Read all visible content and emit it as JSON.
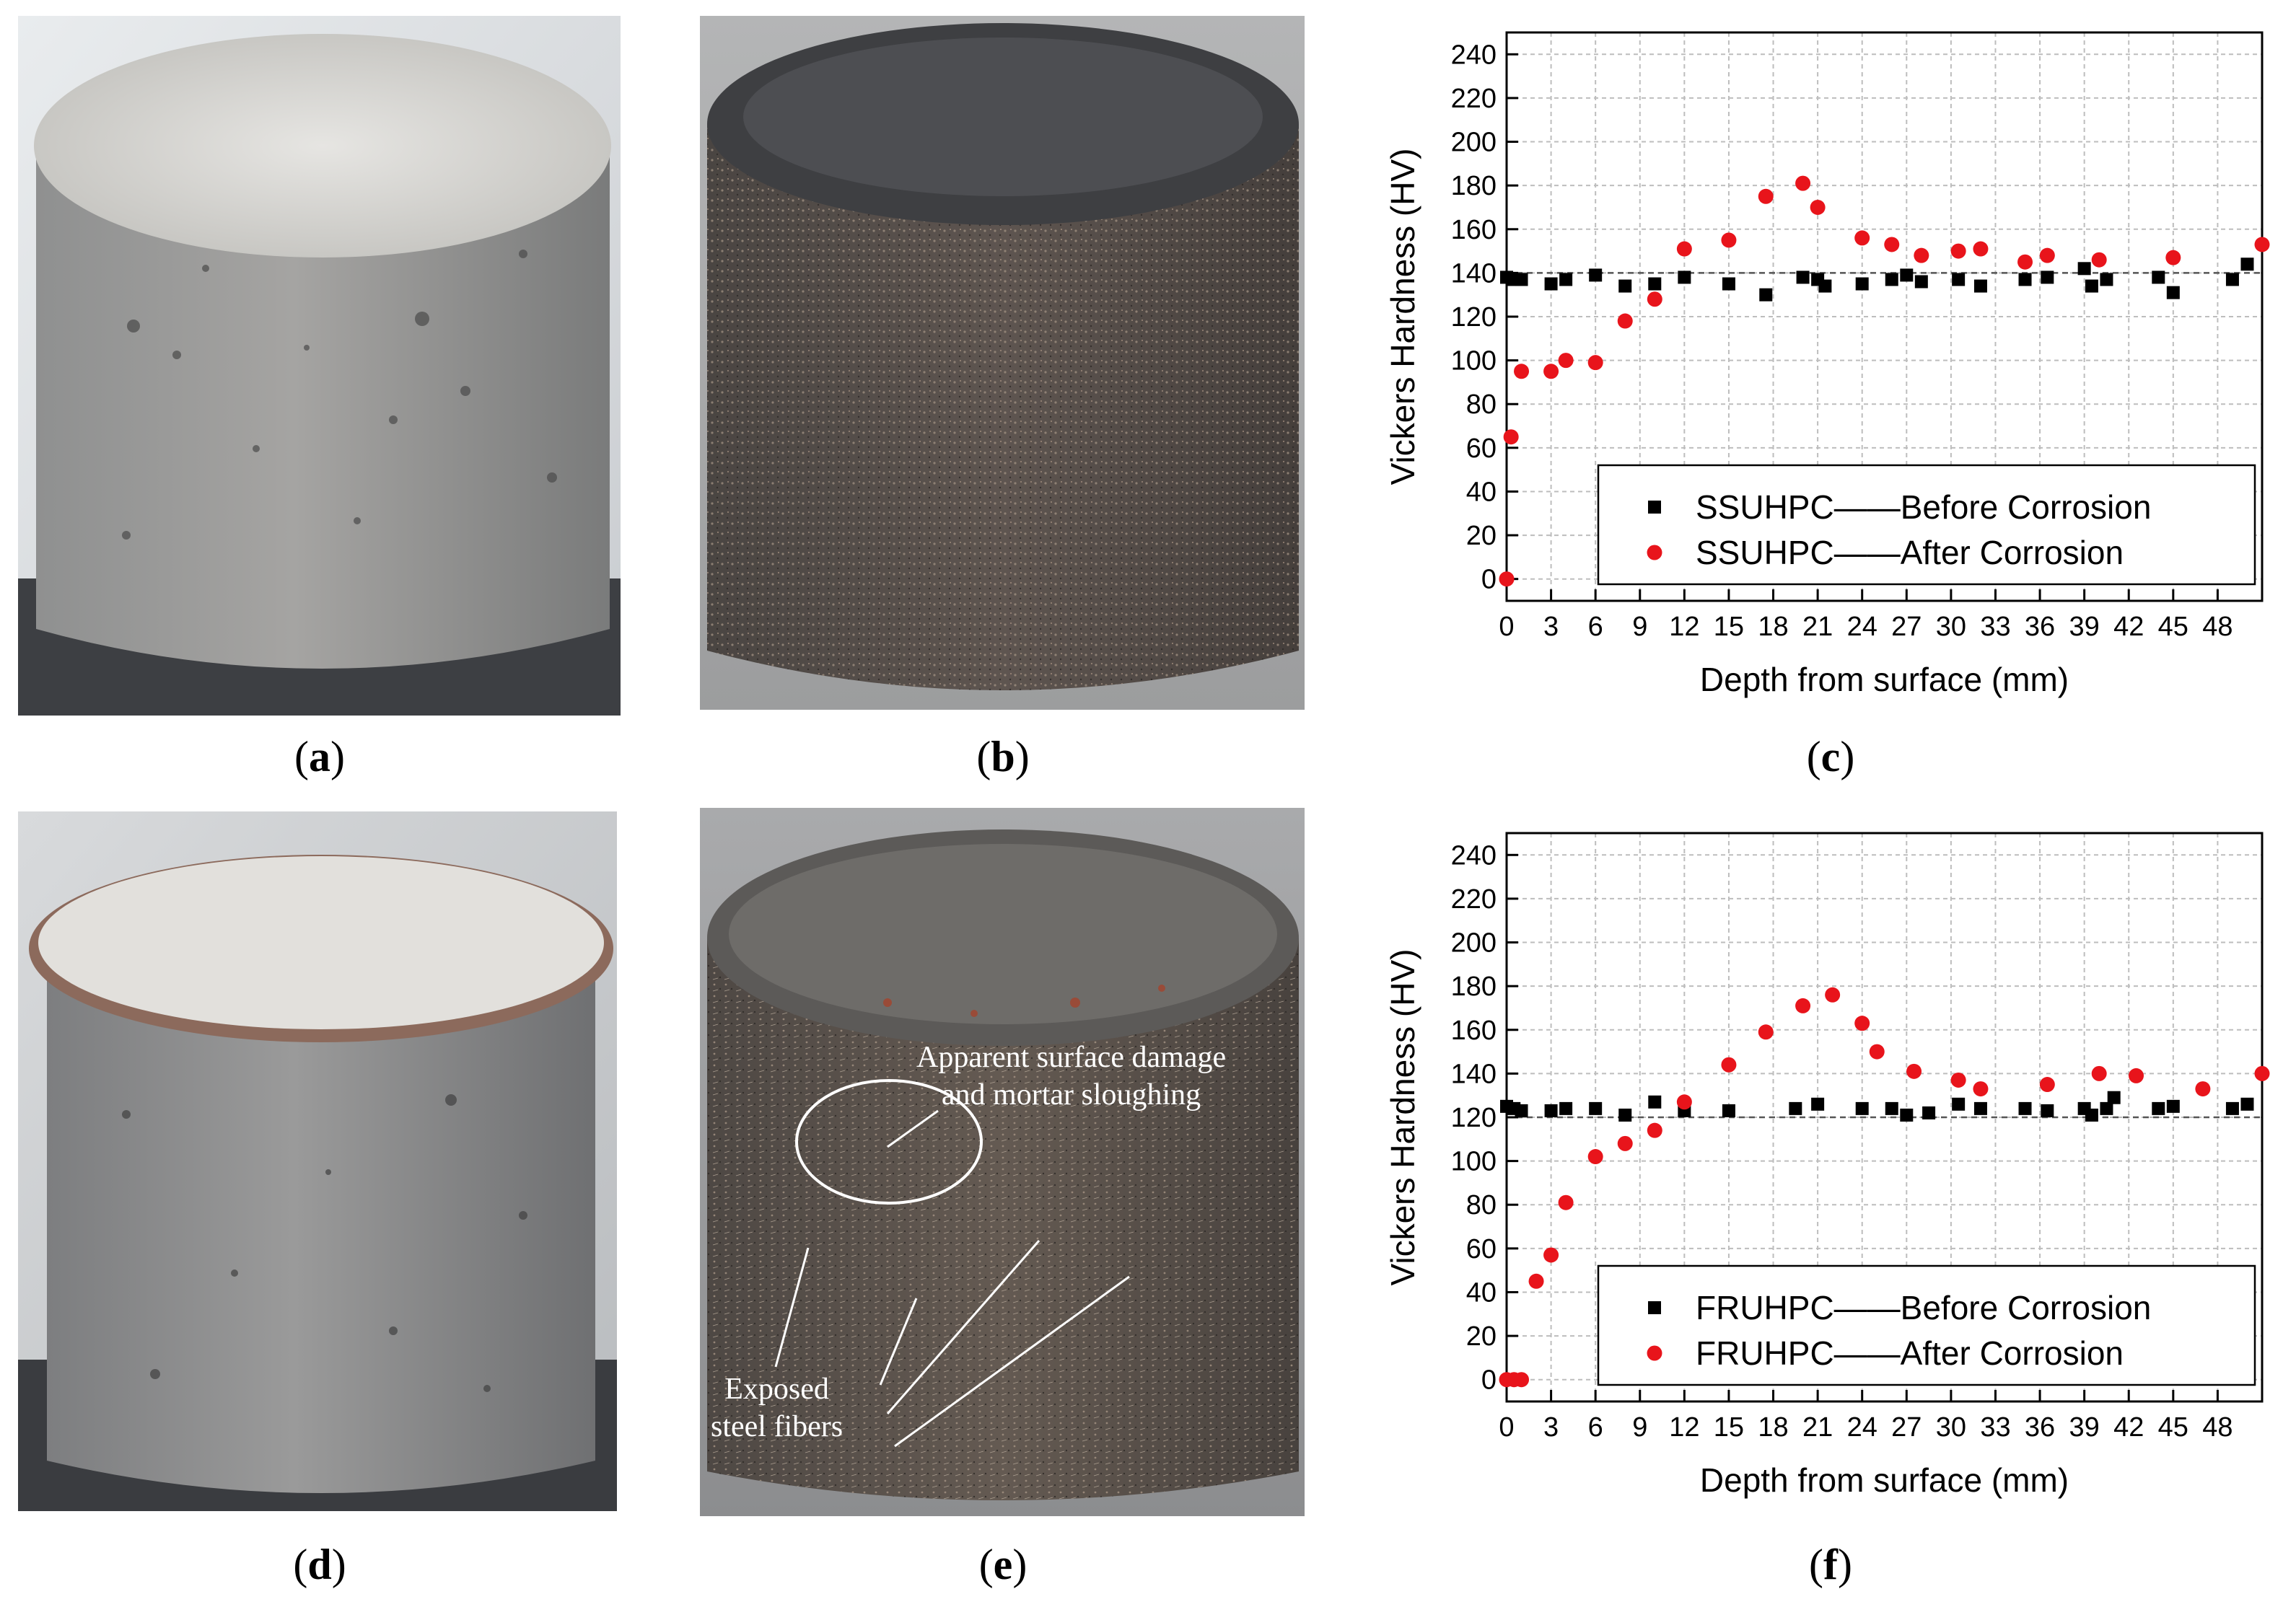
{
  "captions": {
    "a": {
      "open": "(",
      "letter": "a",
      "close": ")"
    },
    "b": {
      "open": "(",
      "letter": "b",
      "close": ")"
    },
    "c": {
      "open": "(",
      "letter": "c",
      "close": ")"
    },
    "d": {
      "open": "(",
      "letter": "d",
      "close": ")"
    },
    "e": {
      "open": "(",
      "letter": "e",
      "close": ")"
    },
    "f": {
      "open": "(",
      "letter": "f",
      "close": ")"
    }
  },
  "annotations": {
    "damage_line1": "Apparent surface damage",
    "damage_line2": "and mortar sloughing",
    "fibers_line1": "Exposed",
    "fibers_line2": "steel fibers"
  },
  "colors": {
    "before": "#000000",
    "after": "#e8141b",
    "grid": "#bdbdbd",
    "ref_line": "#555555"
  },
  "chart_data": [
    {
      "id": "c",
      "type": "scatter",
      "xlabel": "Depth from surface (mm)",
      "ylabel": "Vickers Hardness (HV)",
      "xlim": [
        0,
        51
      ],
      "ylim": [
        -10,
        250
      ],
      "xticks": [
        0,
        3,
        6,
        9,
        12,
        15,
        18,
        21,
        24,
        27,
        30,
        33,
        36,
        39,
        42,
        45,
        48
      ],
      "yticks": [
        0,
        20,
        40,
        60,
        80,
        100,
        120,
        140,
        160,
        180,
        200,
        220,
        240
      ],
      "ref_line": 140,
      "grid": true,
      "legend_position": "bottom-right",
      "series": [
        {
          "name": "SSUHPC——Before Corrosion",
          "marker": "square",
          "color": "#000000",
          "x": [
            0,
            0.5,
            1,
            3,
            4,
            6,
            8,
            10,
            12,
            15,
            17.5,
            20,
            21,
            21.5,
            24,
            26,
            27,
            28,
            30.5,
            32,
            35,
            36.5,
            39,
            39.5,
            40.5,
            44,
            45,
            49,
            50
          ],
          "y": [
            138,
            137,
            137,
            135,
            137,
            139,
            134,
            135,
            138,
            135,
            130,
            138,
            137,
            134,
            135,
            137,
            139,
            136,
            137,
            134,
            137,
            138,
            142,
            134,
            137,
            138,
            131,
            137,
            144
          ]
        },
        {
          "name": "SSUHPC——After Corrosion",
          "marker": "circle",
          "color": "#e8141b",
          "x": [
            0,
            0.3,
            1,
            3,
            4,
            6,
            8,
            10,
            12,
            15,
            17.5,
            20,
            21,
            24,
            26,
            28,
            30.5,
            32,
            35,
            36.5,
            40,
            45,
            51
          ],
          "y": [
            0,
            65,
            95,
            95,
            100,
            99,
            118,
            128,
            151,
            155,
            175,
            181,
            170,
            156,
            153,
            148,
            150,
            151,
            145,
            148,
            146,
            147,
            153
          ]
        }
      ]
    },
    {
      "id": "f",
      "type": "scatter",
      "xlabel": "Depth from surface (mm)",
      "ylabel": "Vickers Hardness (HV)",
      "xlim": [
        0,
        51
      ],
      "ylim": [
        -10,
        250
      ],
      "xticks": [
        0,
        3,
        6,
        9,
        12,
        15,
        18,
        21,
        24,
        27,
        30,
        33,
        36,
        39,
        42,
        45,
        48
      ],
      "yticks": [
        0,
        20,
        40,
        60,
        80,
        100,
        120,
        140,
        160,
        180,
        200,
        220,
        240
      ],
      "ref_line": 120,
      "grid": true,
      "legend_position": "bottom-right",
      "series": [
        {
          "name": "FRUHPC——Before Corrosion",
          "marker": "square",
          "color": "#000000",
          "x": [
            0,
            0.5,
            1,
            3,
            4,
            6,
            8,
            10,
            12,
            15,
            19.5,
            21,
            24,
            26,
            27,
            28.5,
            30.5,
            32,
            35,
            36.5,
            39,
            39.5,
            40.5,
            41,
            44,
            45,
            49,
            50
          ],
          "y": [
            125,
            124,
            123,
            123,
            124,
            124,
            121,
            127,
            123,
            123,
            124,
            126,
            124,
            124,
            121,
            122,
            126,
            124,
            124,
            123,
            124,
            121,
            124,
            129,
            124,
            125,
            124,
            126
          ]
        },
        {
          "name": "FRUHPC——After Corrosion",
          "marker": "circle",
          "color": "#e8141b",
          "x": [
            0,
            0.5,
            1,
            2,
            3,
            4,
            6,
            8,
            10,
            12,
            15,
            17.5,
            20,
            22,
            24,
            25,
            27.5,
            30.5,
            32,
            36.5,
            40,
            42.5,
            47,
            51
          ],
          "y": [
            0,
            0,
            0,
            45,
            57,
            81,
            102,
            108,
            114,
            127,
            144,
            159,
            171,
            176,
            163,
            150,
            141,
            137,
            133,
            135,
            140,
            139,
            133,
            140
          ]
        }
      ]
    }
  ]
}
